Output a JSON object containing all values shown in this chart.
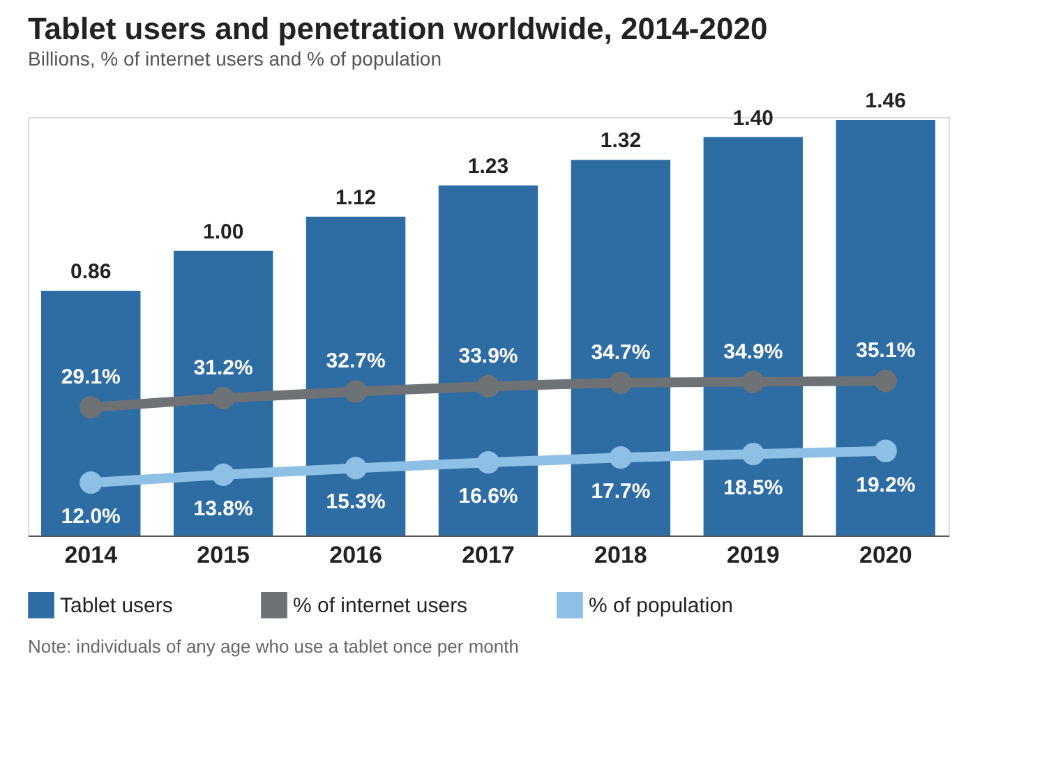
{
  "chart_data": {
    "type": "bar",
    "title": "Tablet users and penetration worldwide, 2014-2020",
    "subtitle": "Billions, % of internet users and % of population",
    "categories": [
      "2014",
      "2015",
      "2016",
      "2017",
      "2018",
      "2019",
      "2020"
    ],
    "series": [
      {
        "name": "Tablet users",
        "color": "#2e6ca4",
        "values": [
          0.86,
          1.0,
          1.12,
          1.23,
          1.32,
          1.4,
          1.46
        ],
        "value_labels": [
          "0.86",
          "1.00",
          "1.12",
          "1.23",
          "1.32",
          "1.40",
          "1.46"
        ]
      },
      {
        "name": "% of internet users",
        "type": "line",
        "axis": "y2",
        "color": "#6f7275",
        "values": [
          29.1,
          31.2,
          32.7,
          33.9,
          34.7,
          34.9,
          35.1
        ],
        "value_labels": [
          "29.1%",
          "31.2%",
          "32.7%",
          "33.9%",
          "34.7%",
          "34.9%",
          "35.1%"
        ]
      },
      {
        "name": "% of population",
        "type": "line",
        "axis": "y2",
        "color": "#8ec0e6",
        "values": [
          12.0,
          13.8,
          15.3,
          16.6,
          17.7,
          18.5,
          19.2
        ],
        "value_labels": [
          "12.0%",
          "13.8%",
          "15.3%",
          "16.6%",
          "17.7%",
          "18.5%",
          "19.2%"
        ]
      }
    ],
    "ylim": [
      0,
      1.47
    ],
    "y2lim": [
      0,
      95
    ],
    "tick_labels": "x",
    "legend": "bottom",
    "marker": "circle",
    "grid": false,
    "annotations": [
      "Note: individuals of any age who use a tablet once per month"
    ]
  }
}
